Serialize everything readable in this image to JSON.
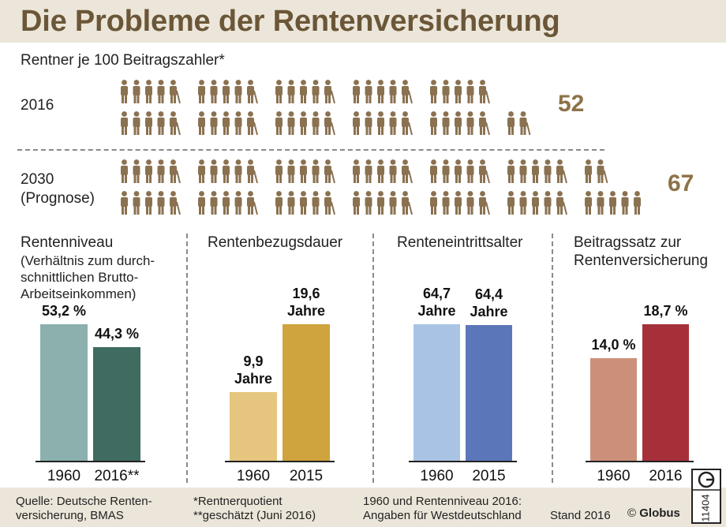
{
  "header": {
    "title": "Die Probleme der Rentenversicherung"
  },
  "pictogram": {
    "subtitle": "Rentner je 100 Beitragszahler*",
    "rows": [
      {
        "label": "2016",
        "label2": "",
        "value": "52",
        "count": 52
      },
      {
        "label": "2030",
        "label2": "(Prognose)",
        "value": "67",
        "count": 67
      }
    ],
    "colors": {
      "person": "#8a7150",
      "cane": "#8a7150"
    }
  },
  "chart_data": [
    {
      "type": "bar",
      "title": "Rentenniveau",
      "note": "(Verhältnis zum durch-schnittlichen Brutto-Arbeitseinkommen)",
      "note_lines": [
        "(Verhältnis zum durch-",
        "schnittlichen Brutto-",
        "Arbeitseinkommen)"
      ],
      "categories": [
        "1960",
        "2016**"
      ],
      "values": [
        53.2,
        44.3
      ],
      "value_labels": [
        "53,2 %",
        "44,3 %"
      ],
      "colors": [
        "#8bb0ae",
        "#3f6b61"
      ],
      "ylim": [
        0,
        53.2
      ]
    },
    {
      "type": "bar",
      "title": "Rentenbezugsdauer",
      "categories": [
        "1960",
        "2015"
      ],
      "values": [
        9.9,
        19.6
      ],
      "value_labels": [
        "9,9",
        "19,6"
      ],
      "unit_label": "Jahre",
      "colors": [
        "#e6c67f",
        "#cfa33d"
      ],
      "ylim": [
        0,
        19.6
      ]
    },
    {
      "type": "bar",
      "title": "Renteneintrittsalter",
      "categories": [
        "1960",
        "2015"
      ],
      "values": [
        64.7,
        64.4
      ],
      "value_labels": [
        "64,7",
        "64,4"
      ],
      "unit_label": "Jahre",
      "colors": [
        "#a9c3e5",
        "#5c77b9"
      ],
      "ylim": [
        0,
        64.7
      ]
    },
    {
      "type": "bar",
      "title": "Beitragssatz zur Rentenversicherung",
      "title_lines": [
        "Beitragssatz zur",
        "Rentenversicherung"
      ],
      "categories": [
        "1960",
        "2016"
      ],
      "values": [
        14.0,
        18.7
      ],
      "value_labels": [
        "14,0 %",
        "18,7 %"
      ],
      "colors": [
        "#cc907a",
        "#a6303a"
      ],
      "ylim": [
        0,
        18.7
      ]
    }
  ],
  "footer": {
    "source_1": "Quelle: Deutsche Renten-",
    "source_2": "versicherung, BMAS",
    "note_1": "*Rentnerquotient",
    "note_2": "**geschätzt (Juni 2016)",
    "note_3": "1960 und Rentenniveau 2016:",
    "note_4": "Angaben für Westdeutschland",
    "stand": "Stand 2016",
    "copyright": "©",
    "brand": "Globus",
    "number": "11404"
  }
}
